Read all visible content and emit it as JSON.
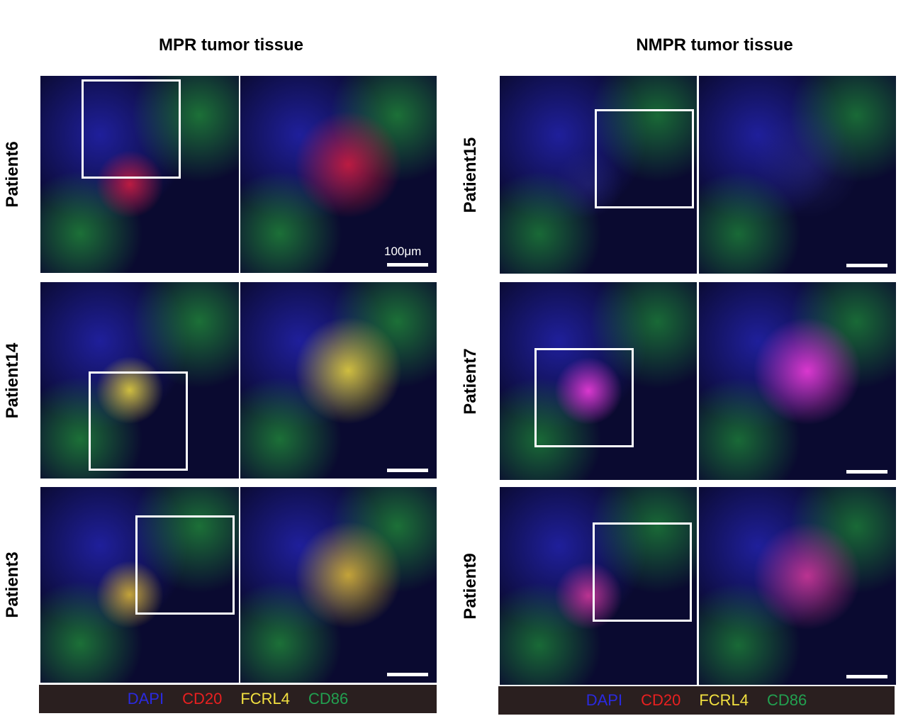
{
  "panels": [
    {
      "title": "MPR tumor tissue",
      "rows": [
        {
          "label": "Patient6"
        },
        {
          "label": "Patient14"
        },
        {
          "label": "Patient3"
        }
      ],
      "scale_bar": "100μm",
      "legend": [
        "DAPI",
        "CD20",
        "FCRL4",
        "CD86"
      ]
    },
    {
      "title": "NMPR tumor tissue",
      "rows": [
        {
          "label": "Patient15"
        },
        {
          "label": "Patient7"
        },
        {
          "label": "Patient9"
        }
      ],
      "legend": [
        "DAPI",
        "CD20",
        "FCRL4",
        "CD86"
      ]
    }
  ]
}
